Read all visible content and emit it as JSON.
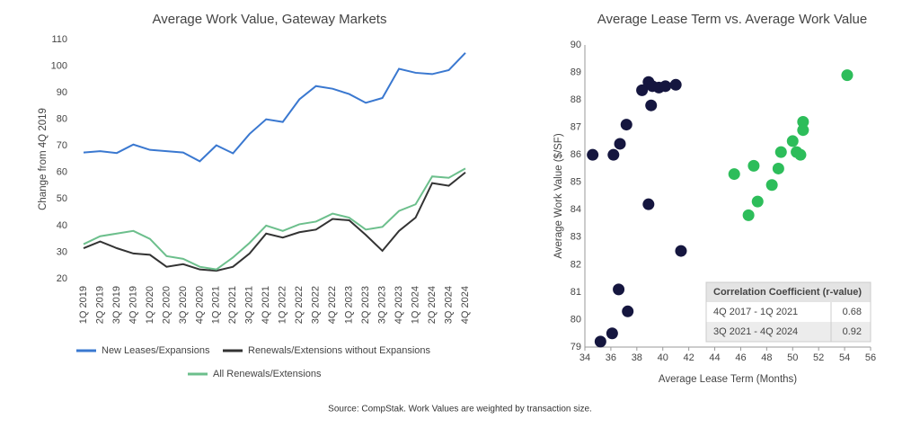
{
  "chart_data": [
    {
      "type": "line",
      "title": "Average Work Value, Gateway Markets",
      "y_label": "Change from 4Q 2019",
      "categories": [
        "1Q 2019",
        "2Q 2019",
        "3Q 2019",
        "4Q 2019",
        "1Q 2020",
        "2Q 2020",
        "3Q 2020",
        "4Q 2020",
        "1Q 2021",
        "2Q 2021",
        "3Q 2021",
        "4Q 2021",
        "1Q 2022",
        "2Q 2022",
        "3Q 2022",
        "4Q 2022",
        "1Q 2023",
        "2Q 2023",
        "3Q 2023",
        "4Q 2023",
        "1Q 2024",
        "2Q 2024",
        "3Q 2024",
        "4Q 2024"
      ],
      "series": [
        {
          "name": "New Leases/Expansions",
          "color": "#3a78d0",
          "values": [
            67.5,
            68,
            67.3,
            70.5,
            68.5,
            68,
            67.5,
            64.2,
            70.2,
            67.2,
            74.5,
            80,
            79,
            87.5,
            92.5,
            91.5,
            89.5,
            86.2,
            88,
            99,
            97.5,
            97,
            98.5,
            105
          ]
        },
        {
          "name": "Renewals/Extensions without Expansions",
          "color": "#333333",
          "values": [
            31.5,
            34,
            31.5,
            29.5,
            29,
            24.5,
            25.5,
            23.5,
            23,
            24.5,
            29.5,
            37,
            35.5,
            37.5,
            38.5,
            42.5,
            42,
            36.5,
            30.5,
            38,
            43,
            56,
            55,
            60
          ]
        },
        {
          "name": "All Renewals/Extensions",
          "color": "#6cbf8c",
          "values": [
            33,
            36,
            37,
            38,
            35,
            28.5,
            27.5,
            24.5,
            23.5,
            28,
            33.5,
            40,
            38,
            40.5,
            41.5,
            44.5,
            43,
            38.5,
            39.5,
            45.5,
            48,
            58.5,
            58,
            61.5
          ]
        }
      ],
      "ylim": [
        20,
        110
      ],
      "yticks": [
        20,
        30,
        40,
        50,
        60,
        70,
        80,
        90,
        100,
        110
      ],
      "grid": false
    },
    {
      "type": "scatter",
      "title": "Average Lease Term vs. Average Work Value",
      "x_label": "Average Lease Term (Months)",
      "y_label": "Average Work Value ($/SF)",
      "series": [
        {
          "name": "4Q 2017 - 1Q 2021",
          "color": "#15163f",
          "r_value": 0.68,
          "x": [
            34.6,
            36.2,
            36.7,
            37.2,
            38.4,
            38.9,
            39.2,
            39.7,
            40.2,
            41.0,
            39.1,
            38.9,
            41.4,
            36.6,
            37.3,
            36.1,
            35.2
          ],
          "values": [
            86.0,
            86.0,
            86.4,
            87.1,
            88.35,
            88.65,
            88.5,
            88.45,
            88.5,
            88.55,
            87.8,
            84.2,
            82.5,
            81.1,
            80.3,
            79.5,
            79.2
          ]
        },
        {
          "name": "3Q 2021 - 4Q 2024",
          "color": "#2dbd5a",
          "r_value": 0.92,
          "x": [
            54.2,
            50.8,
            50.8,
            50.0,
            49.1,
            50.3,
            50.6,
            47.0,
            45.5,
            48.9,
            48.4,
            47.3,
            46.6
          ],
          "values": [
            88.9,
            87.2,
            86.9,
            86.5,
            86.1,
            86.1,
            86.0,
            85.6,
            85.3,
            85.5,
            84.9,
            84.3,
            83.8
          ]
        }
      ],
      "table_title": "Correlation Coefficient (r-value)",
      "xlim": [
        34,
        56
      ],
      "xticks": [
        34,
        36,
        38,
        40,
        42,
        44,
        46,
        48,
        50,
        52,
        54,
        56
      ],
      "ylim": [
        79,
        90
      ],
      "yticks": [
        79,
        80,
        81,
        82,
        83,
        84,
        85,
        86,
        87,
        88,
        89,
        90
      ],
      "grid": false
    }
  ],
  "source": "Source: CompStak. Work Values are weighted by transaction size."
}
